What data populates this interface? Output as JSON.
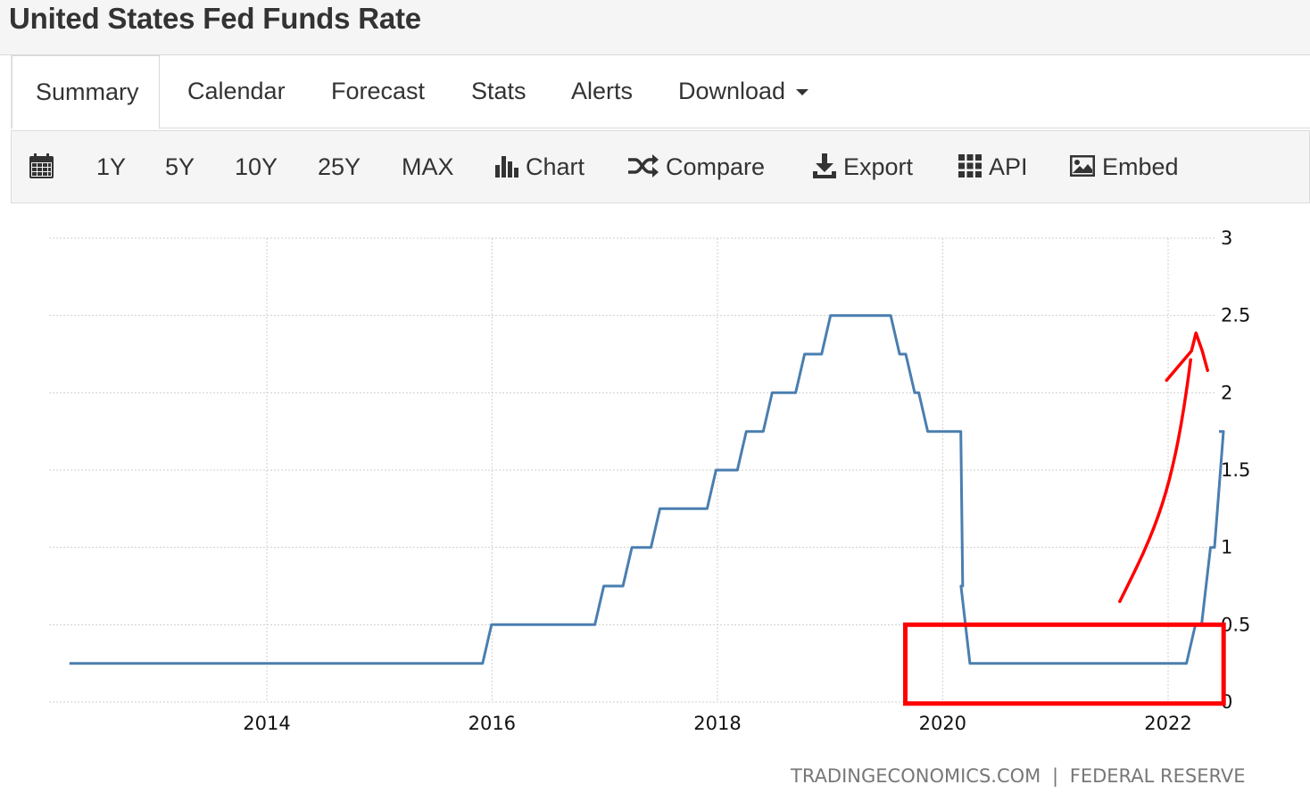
{
  "page_title": "United States Fed Funds Rate",
  "tabs": [
    {
      "label": "Summary",
      "active": true
    },
    {
      "label": "Calendar"
    },
    {
      "label": "Forecast"
    },
    {
      "label": "Stats"
    },
    {
      "label": "Alerts"
    },
    {
      "label": "Download",
      "icon": "caret-down-icon"
    }
  ],
  "toolbar": {
    "calendar_icon": "calendar-icon",
    "ranges": [
      "1Y",
      "5Y",
      "10Y",
      "25Y",
      "MAX"
    ],
    "chart_label": "Chart",
    "compare_label": "Compare",
    "export_label": "Export",
    "api_label": "API",
    "embed_label": "Embed"
  },
  "source": {
    "site": "TRADINGECONOMICS.COM",
    "separator": "|",
    "agency": "FEDERAL RESERVE"
  },
  "colors": {
    "series": "#4a7eb0",
    "annotation": "#ff0000",
    "grid": "#cfcfcf"
  },
  "chart_data": {
    "type": "line",
    "title": "",
    "xlabel": "",
    "ylabel": "",
    "xlim": [
      "2012-04-01",
      "2022-06-15"
    ],
    "ylim": [
      0,
      3
    ],
    "x_ticks": [
      "2014",
      "2016",
      "2018",
      "2020",
      "2022"
    ],
    "y_ticks": [
      "3",
      "2.5",
      "2",
      "1.5",
      "1",
      "0.5",
      "0"
    ],
    "grid": true,
    "y_axis_side": "right",
    "series": [
      {
        "step": true,
        "points": [
          [
            "2012-04-01",
            0.25
          ],
          [
            "2015-12-16",
            0.5
          ],
          [
            "2016-12-14",
            0.75
          ],
          [
            "2017-03-15",
            1.0
          ],
          [
            "2017-06-14",
            1.25
          ],
          [
            "2017-12-13",
            1.5
          ],
          [
            "2018-03-21",
            1.75
          ],
          [
            "2018-06-13",
            2.0
          ],
          [
            "2018-09-26",
            2.25
          ],
          [
            "2018-12-19",
            2.5
          ],
          [
            "2019-07-31",
            2.25
          ],
          [
            "2019-09-18",
            2.0
          ],
          [
            "2019-10-30",
            1.75
          ],
          [
            "2020-03-03",
            0.75
          ],
          [
            "2020-03-15",
            0.25
          ],
          [
            "2022-03-16",
            0.5
          ],
          [
            "2022-05-04",
            1.0
          ],
          [
            "2022-06-15",
            1.75
          ]
        ]
      }
    ],
    "annotations": [
      {
        "type": "rectangle",
        "x_range": [
          "2019-10-01",
          "2022-06-01"
        ],
        "y_range": [
          -0.01,
          0.5
        ]
      },
      {
        "type": "hand-drawn-arrow",
        "direction": "up",
        "from": [
          "2021-09-01",
          0.65
        ],
        "to": [
          "2022-03-15",
          2.3
        ]
      }
    ]
  }
}
